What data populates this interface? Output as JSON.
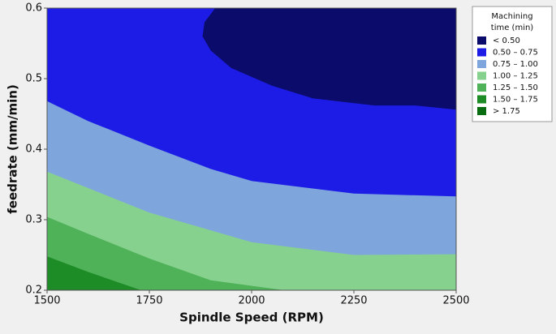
{
  "chart_data": {
    "type": "contour",
    "xlabel": "Spindle Speed (RPM)",
    "ylabel": "feedrate (mm/min)",
    "xlim": [
      1500,
      2500
    ],
    "ylim": [
      0.2,
      0.6
    ],
    "xticks": [
      1500,
      1750,
      2000,
      2250,
      2500
    ],
    "yticks": [
      0.2,
      0.3,
      0.4,
      0.5,
      0.6
    ],
    "legend_title": [
      "Machining",
      "time (min)"
    ],
    "legend": [
      {
        "label": "< 0.50",
        "color": "#0b0b6b"
      },
      {
        "label": "0.50 – 0.75",
        "color": "#1c1ce6"
      },
      {
        "label": "0.75 – 1.00",
        "color": "#7ea6dc"
      },
      {
        "label": "1.00 – 1.25",
        "color": "#86d18e"
      },
      {
        "label": "1.25 – 1.50",
        "color": "#4fb158"
      },
      {
        "label": "1.50 – 1.75",
        "color": "#1d8c27"
      },
      {
        "label": "> 1.75",
        "color": "#086c10"
      }
    ],
    "contours": [
      {
        "level": 0.5,
        "side": "above",
        "color": "#0b0b6b",
        "x": [
          1911,
          1885,
          1880,
          1900,
          1950,
          2050,
          2150,
          2300,
          2400,
          2500
        ],
        "y": [
          0.6,
          0.58,
          0.56,
          0.54,
          0.515,
          0.49,
          0.472,
          0.462,
          0.462,
          0.456
        ]
      },
      {
        "level": 0.75,
        "side": "below",
        "color": "#7ea6dc",
        "x": [
          1500,
          1600,
          1750,
          1900,
          2000,
          2250,
          2500
        ],
        "y": [
          0.468,
          0.44,
          0.405,
          0.372,
          0.355,
          0.337,
          0.333
        ]
      },
      {
        "level": 1.0,
        "side": "below",
        "color": "#86d18e",
        "x": [
          1500,
          1600,
          1750,
          1900,
          2000,
          2250,
          2500
        ],
        "y": [
          0.368,
          0.345,
          0.31,
          0.285,
          0.268,
          0.25,
          0.251
        ]
      },
      {
        "level": 1.25,
        "side": "below",
        "color": "#4fb158",
        "x": [
          1500,
          1600,
          1750,
          1900,
          2080
        ],
        "y": [
          0.304,
          0.28,
          0.245,
          0.214,
          0.2
        ]
      },
      {
        "level": 1.5,
        "side": "below",
        "color": "#1d8c27",
        "x": [
          1500,
          1600,
          1730
        ],
        "y": [
          0.248,
          0.226,
          0.2
        ]
      }
    ]
  }
}
